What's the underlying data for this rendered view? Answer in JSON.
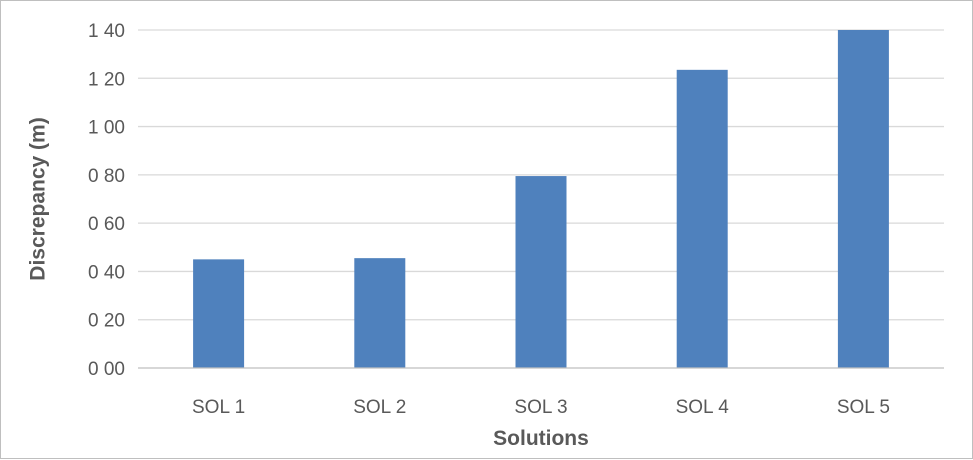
{
  "chart_data": {
    "type": "bar",
    "categories": [
      "SOL 1",
      "SOL 2",
      "SOL 3",
      "SOL 4",
      "SOL 5"
    ],
    "values": [
      0.45,
      0.455,
      0.795,
      1.235,
      1.4
    ],
    "ytick_values": [
      0,
      0.2,
      0.4,
      0.6,
      0.8,
      1.0,
      1.2,
      1.4
    ],
    "ytick_labels": [
      "0 00",
      "0 20",
      "0 40",
      "0 60",
      "0 80",
      "1 00",
      "1 20",
      "1 40"
    ],
    "ylim": [
      0,
      1.4
    ],
    "title": "",
    "xlabel": "Solutions",
    "ylabel": "Discrepancy (m)",
    "grid": true,
    "legend": "none",
    "bar_color": "#4f81bd",
    "grid_color": "#d9d9d9",
    "axis_color": "#bfbfbf",
    "text_color": "#595959"
  }
}
